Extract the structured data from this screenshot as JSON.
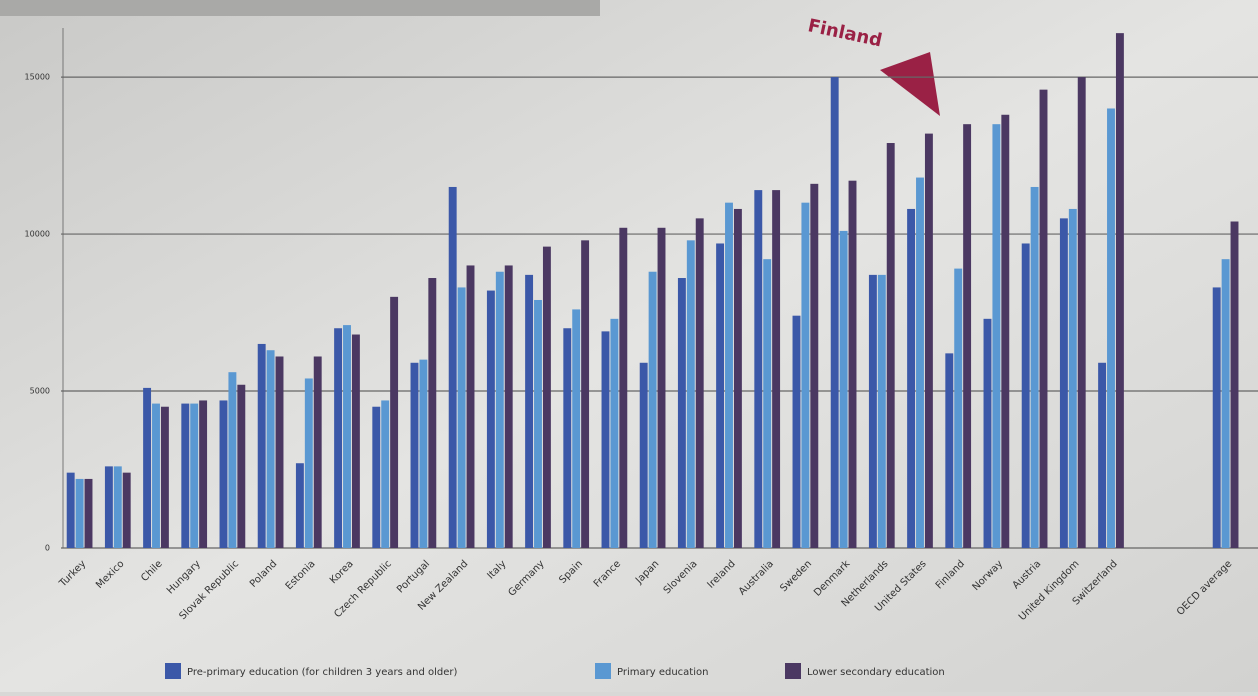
{
  "chart_data": {
    "type": "bar",
    "annotation": "Finland",
    "categories": [
      "Turkey",
      "Mexico",
      "Chile",
      "Hungary",
      "Slovak Republic",
      "Poland",
      "Estonia",
      "Korea",
      "Czech Republic",
      "Portugal",
      "New Zealand",
      "Italy",
      "Germany",
      "Spain",
      "France",
      "Japan",
      "Slovenia",
      "Ireland",
      "Australia",
      "Sweden",
      "Denmark",
      "Netherlands",
      "United States",
      "Finland",
      "Norway",
      "Austria",
      "United Kingdom",
      "Switzerland",
      null,
      null,
      "OECD average"
    ],
    "series": [
      {
        "name": "Pre-primary education (for children 3 years and older)",
        "color": "#3b58a8",
        "values": [
          2400,
          2600,
          5100,
          4600,
          4700,
          6500,
          2700,
          7000,
          4500,
          5900,
          11500,
          8200,
          8700,
          7000,
          6900,
          5900,
          8600,
          9700,
          11400,
          7400,
          15000,
          8700,
          10800,
          6200,
          7300,
          9700,
          10500,
          5900,
          null,
          null,
          8300
        ]
      },
      {
        "name": "Primary education",
        "color": "#5a98d2",
        "values": [
          2200,
          2600,
          4600,
          4600,
          5600,
          6300,
          5400,
          7100,
          4700,
          6000,
          8300,
          8800,
          7900,
          7600,
          7300,
          8800,
          9800,
          11000,
          9200,
          11000,
          10100,
          8700,
          11800,
          8900,
          13500,
          11500,
          10800,
          14000,
          null,
          null,
          9200
        ]
      },
      {
        "name": "Lower secondary education",
        "color": "#4b3862",
        "values": [
          2200,
          2400,
          4500,
          4700,
          5200,
          6100,
          6100,
          6800,
          8000,
          8600,
          9000,
          9000,
          9600,
          9800,
          10200,
          10200,
          10500,
          10800,
          11400,
          11600,
          11700,
          12900,
          13200,
          13500,
          13800,
          14600,
          15000,
          16400,
          null,
          null,
          10400
        ]
      }
    ],
    "ylim": [
      0,
      16500
    ],
    "yticks": [
      0,
      5000,
      10000,
      15000
    ],
    "grid": true
  }
}
